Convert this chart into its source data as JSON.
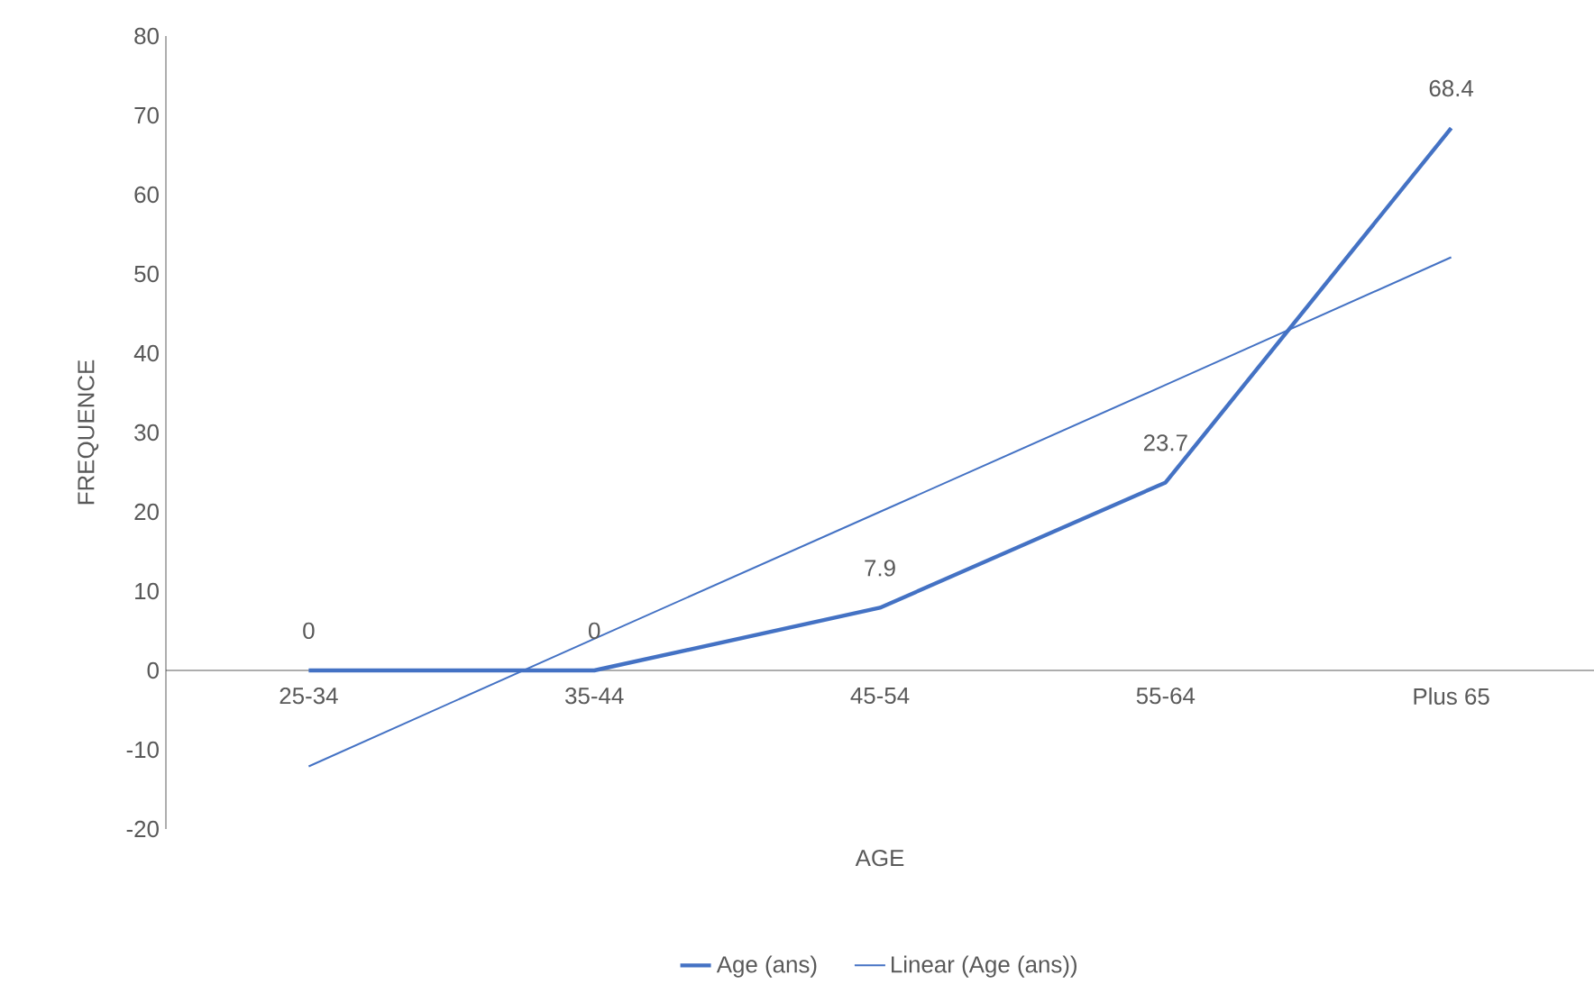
{
  "chart_data": {
    "type": "line",
    "xlabel": "AGE",
    "ylabel": "FREQUENCE",
    "categories": [
      "25-34",
      "35-44",
      "45-54",
      "55-64",
      "Plus 65"
    ],
    "series": [
      {
        "name": "Age (ans)",
        "color": "#4472c4",
        "values": [
          0,
          0,
          7.9,
          23.7,
          68.4
        ],
        "value_labels": [
          "0",
          "0",
          "7.9",
          "23.7",
          "68.4"
        ],
        "line_style": "solid"
      },
      {
        "name": "Linear (Age (ans))",
        "color": "#4472c4",
        "values": [
          -12.1,
          4,
          20,
          36,
          52.1
        ],
        "line_style": "solid"
      }
    ],
    "ylim": [
      -20,
      80
    ],
    "yticks": [
      -20,
      -10,
      0,
      10,
      20,
      30,
      40,
      50,
      60,
      70,
      80
    ],
    "grid": false,
    "legend": "bottom",
    "marker": "none"
  }
}
